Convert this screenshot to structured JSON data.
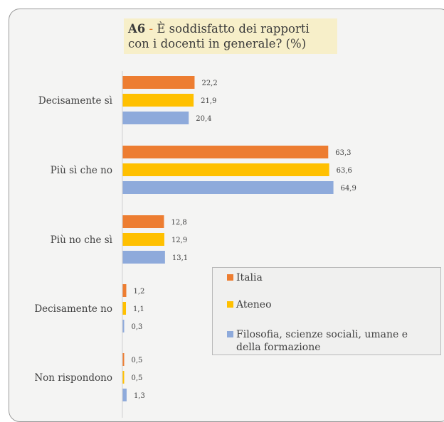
{
  "title": {
    "code": "A6",
    "separator": " - ",
    "line1_rest": "È soddisfatto dei rapporti",
    "line2": "con i docenti in generale? (%)"
  },
  "colors": {
    "Italia": "#ed7d31",
    "Ateneo": "#ffc000",
    "Filosofia": "#8eaadb"
  },
  "chart_data": {
    "type": "bar",
    "orientation": "horizontal",
    "categories": [
      "Decisamente sì",
      "Più sì che no",
      "Più no che sì",
      "Decisamente no",
      "Non rispondono"
    ],
    "series": [
      {
        "name": "Italia",
        "values": [
          22.2,
          63.3,
          12.8,
          1.2,
          0.5
        ],
        "labels": [
          "22,2",
          "63,3",
          "12,8",
          "1,2",
          "0,5"
        ]
      },
      {
        "name": "Ateneo",
        "values": [
          21.9,
          63.6,
          12.9,
          1.1,
          0.5
        ],
        "labels": [
          "21,9",
          "63,6",
          "12,9",
          "1,1",
          "0,5"
        ]
      },
      {
        "name": "Filosofia, scienze sociali, umane e della formazione",
        "values": [
          20.4,
          64.9,
          13.1,
          0.3,
          1.3
        ],
        "labels": [
          "20,4",
          "64,9",
          "13,1",
          "0,3",
          "1,3"
        ]
      }
    ],
    "legend": [
      "Italia",
      "Ateneo",
      "Filosofia, scienze sociali, umane e della formazione"
    ],
    "legend_placement": "bottom-right",
    "grid": false
  }
}
